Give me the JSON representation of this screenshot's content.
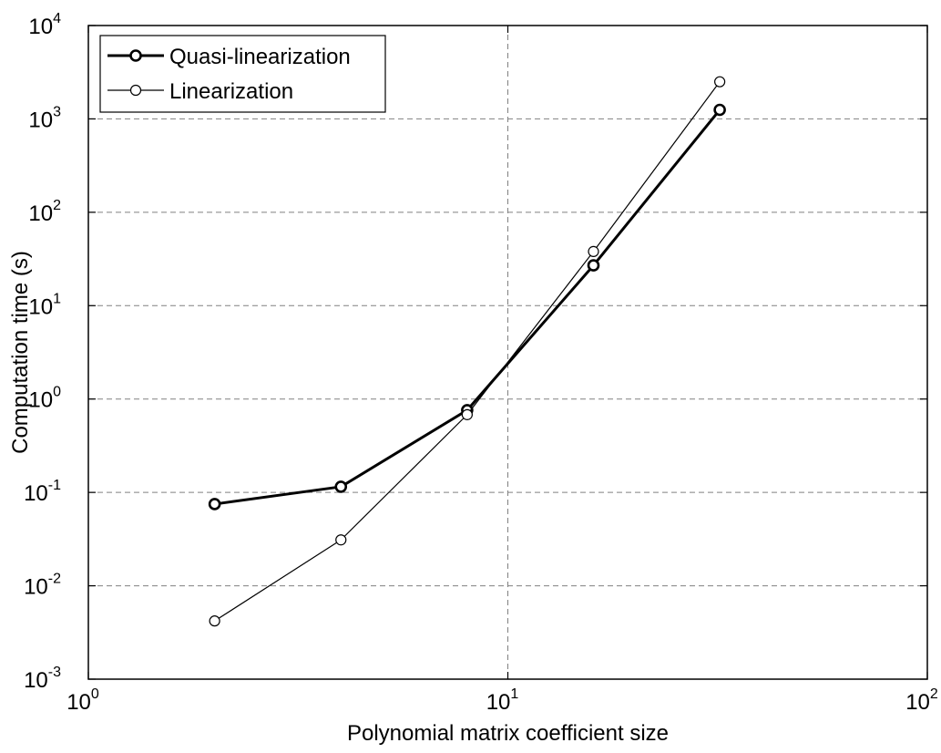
{
  "chart_data": {
    "type": "line",
    "title": "",
    "xlabel": "Polynomial matrix coefficient size",
    "ylabel": "Computation time (s)",
    "xscale": "log",
    "yscale": "log",
    "xlim": [
      1,
      100
    ],
    "ylim": [
      0.001,
      10000
    ],
    "grid": true,
    "legend_position": "top-left",
    "x_ticks": [
      {
        "value": 1,
        "base": "10",
        "exp": "0"
      },
      {
        "value": 10,
        "base": "10",
        "exp": "1"
      },
      {
        "value": 100,
        "base": "10",
        "exp": "2"
      }
    ],
    "y_ticks": [
      {
        "value": 0.001,
        "base": "10",
        "exp": "-3"
      },
      {
        "value": 0.01,
        "base": "10",
        "exp": "-2"
      },
      {
        "value": 0.1,
        "base": "10",
        "exp": "-1"
      },
      {
        "value": 1,
        "base": "10",
        "exp": "0"
      },
      {
        "value": 10,
        "base": "10",
        "exp": "1"
      },
      {
        "value": 100,
        "base": "10",
        "exp": "2"
      },
      {
        "value": 1000,
        "base": "10",
        "exp": "3"
      },
      {
        "value": 10000,
        "base": "10",
        "exp": "4"
      }
    ],
    "series": [
      {
        "name": "Quasi-linearization",
        "style": "thick",
        "color": "#000000",
        "x": [
          2,
          4,
          8,
          16,
          32
        ],
        "y": [
          0.075,
          0.115,
          0.76,
          27,
          1250
        ]
      },
      {
        "name": "Linearization",
        "style": "thin",
        "color": "#000000",
        "x": [
          2,
          4,
          8,
          16,
          32
        ],
        "y": [
          0.0042,
          0.031,
          0.68,
          38,
          2500
        ]
      }
    ]
  }
}
